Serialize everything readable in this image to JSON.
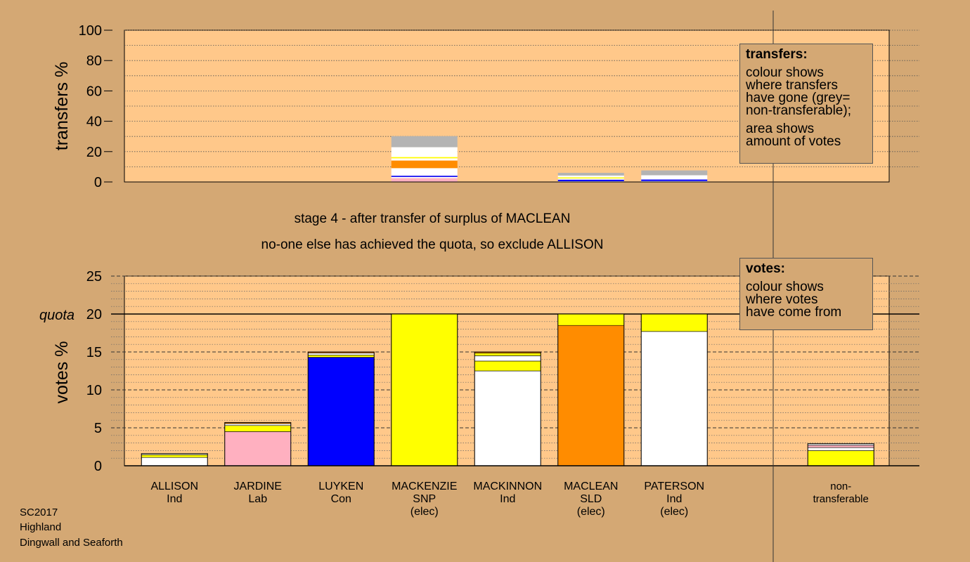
{
  "chart_data": {
    "type": "bar",
    "candidates": [
      {
        "name": "ALLISON",
        "party": "Ind",
        "elected": "",
        "votes": 1.6,
        "vote_segments": [
          {
            "value": 1.1,
            "color": "#ffffff"
          },
          {
            "value": 0.35,
            "color": "#ffff00"
          },
          {
            "value": 0.15,
            "color": "#ffffff"
          }
        ],
        "transfer_segments": []
      },
      {
        "name": "JARDINE",
        "party": "Lab",
        "elected": "",
        "votes": 5.7,
        "vote_segments": [
          {
            "value": 4.5,
            "color": "#ffb0c0"
          },
          {
            "value": 0.8,
            "color": "#ffff00"
          },
          {
            "value": 0.25,
            "color": "#ffffff"
          },
          {
            "value": 0.15,
            "color": "#ff8c00"
          }
        ],
        "transfer_segments": []
      },
      {
        "name": "LUYKEN",
        "party": "Con",
        "elected": "",
        "votes": 15.0,
        "vote_segments": [
          {
            "value": 14.3,
            "color": "#0000ff"
          },
          {
            "value": 0.3,
            "color": "#ffff00"
          },
          {
            "value": 0.25,
            "color": "#ffffff"
          },
          {
            "value": 0.15,
            "color": "#ff8c00"
          }
        ],
        "transfer_segments": []
      },
      {
        "name": "MACKENZIE",
        "party": "SNP",
        "elected": "(elec)",
        "votes": 20.0,
        "vote_segments": [
          {
            "value": 20.0,
            "color": "#ffff00"
          }
        ],
        "transfer_segments": [
          {
            "value": 2.5,
            "color": "#ffb0c0"
          },
          {
            "value": 0.8,
            "color": "#ffffff"
          },
          {
            "value": 0.8,
            "color": "#0000ff"
          },
          {
            "value": 5.0,
            "color": "#ffffff"
          },
          {
            "value": 5.0,
            "color": "#ff8c00"
          },
          {
            "value": 1.5,
            "color": "#ffffff"
          },
          {
            "value": 0.8,
            "color": "#ffff00"
          },
          {
            "value": 6.5,
            "color": "#ffffff"
          },
          {
            "value": 7.3,
            "color": "#b4b4b4"
          }
        ]
      },
      {
        "name": "MACKINNON",
        "party": "Ind",
        "elected": "",
        "votes": 15.0,
        "vote_segments": [
          {
            "value": 12.5,
            "color": "#ffffff"
          },
          {
            "value": 1.3,
            "color": "#ffff00"
          },
          {
            "value": 0.7,
            "color": "#ffffff"
          },
          {
            "value": 0.35,
            "color": "#ffff00"
          },
          {
            "value": 0.15,
            "color": "#ff8c00"
          }
        ],
        "transfer_segments": []
      },
      {
        "name": "MACLEAN",
        "party": "SLD",
        "elected": "(elec)",
        "votes": 20.0,
        "vote_segments": [
          {
            "value": 18.5,
            "color": "#ff8c00"
          },
          {
            "value": 1.5,
            "color": "#ffff00"
          }
        ],
        "transfer_segments": [
          {
            "value": 0.5,
            "color": "#ffffff"
          },
          {
            "value": 1.0,
            "color": "#0000ff"
          },
          {
            "value": 0.8,
            "color": "#ffffff"
          },
          {
            "value": 0.7,
            "color": "#ffff00"
          },
          {
            "value": 1.2,
            "color": "#ffffff"
          },
          {
            "value": 1.8,
            "color": "#b4b4b4"
          }
        ]
      },
      {
        "name": "PATERSON",
        "party": "Ind",
        "elected": "(elec)",
        "votes": 20.0,
        "vote_segments": [
          {
            "value": 17.7,
            "color": "#ffffff"
          },
          {
            "value": 2.3,
            "color": "#ffff00"
          }
        ],
        "transfer_segments": [
          {
            "value": 0.6,
            "color": "#ffffff"
          },
          {
            "value": 1.0,
            "color": "#0000ff"
          },
          {
            "value": 2.8,
            "color": "#ffffff"
          },
          {
            "value": 3.2,
            "color": "#b4b4b4"
          }
        ]
      },
      {
        "name": "",
        "party": "",
        "elected": "",
        "votes": 0,
        "vote_segments": [],
        "transfer_segments": []
      },
      {
        "name": "non-",
        "party": "transferable",
        "elected": "",
        "votes": 2.9,
        "vote_segments": [
          {
            "value": 2.0,
            "color": "#ffff00"
          },
          {
            "value": 0.4,
            "color": "#ffffff"
          },
          {
            "value": 0.3,
            "color": "#ffb0c0"
          },
          {
            "value": 0.2,
            "color": "#ffffff"
          }
        ],
        "transfer_segments": []
      }
    ],
    "transfers_axis": {
      "label": "transfers %",
      "ylim": [
        0,
        100
      ],
      "ticks": [
        "0",
        "20",
        "40",
        "60",
        "80",
        "100"
      ]
    },
    "votes_axis": {
      "label": "votes %",
      "ylim": [
        0,
        25
      ],
      "ticks": [
        "0",
        "5",
        "10",
        "15",
        "20",
        "25"
      ],
      "quota": 20,
      "quota_label": "quota"
    }
  },
  "captions": {
    "stage": "stage 4 - after transfer of surplus of MACLEAN",
    "note": "no-one else has achieved the quota, so exclude ALLISON"
  },
  "transfers_legend": {
    "title": "transfers:",
    "lines1": [
      "colour shows",
      "where transfers",
      "have gone (grey=",
      "non-transferable);"
    ],
    "lines2": [
      "area shows",
      "amount of votes"
    ]
  },
  "votes_legend": {
    "title": "votes:",
    "lines1": [
      "colour shows",
      "where votes",
      "have come from"
    ]
  },
  "info": {
    "election": "SC2017",
    "council": "Highland",
    "ward": "Dingwall and Seaforth"
  },
  "colors": {
    "page_background": "#d4a874",
    "plot_background": "#ffc88a",
    "grey_non_transferable": "#b4b4b4"
  }
}
